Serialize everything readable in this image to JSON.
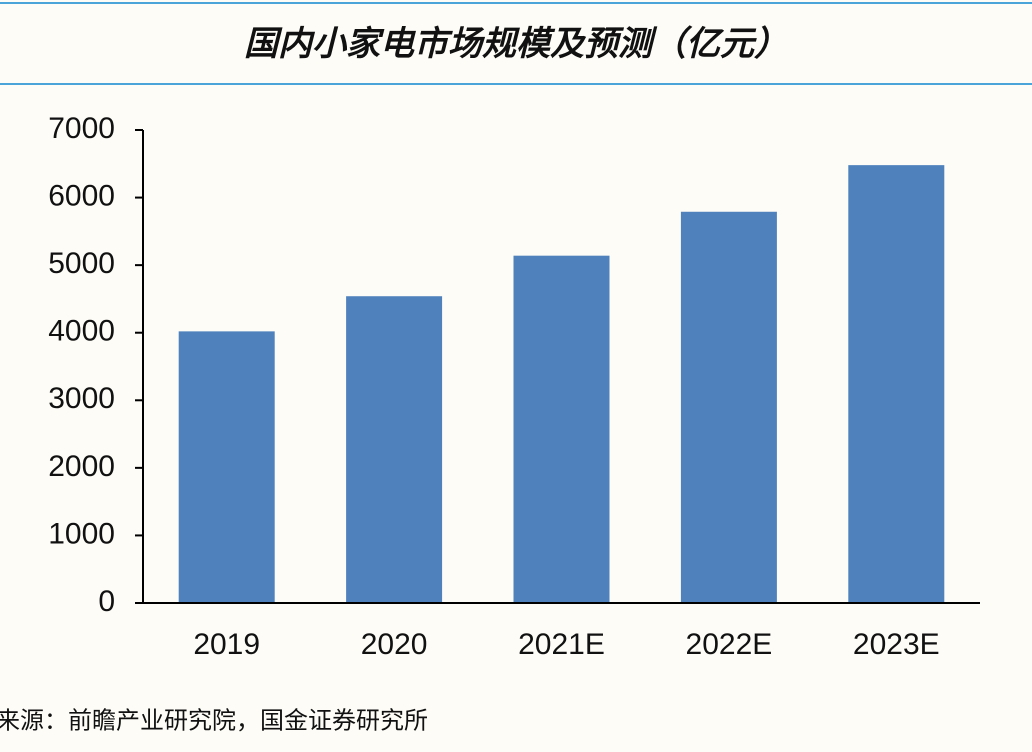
{
  "chart_data": {
    "type": "bar",
    "title": "国内小家电市场规模及预测（亿元）",
    "categories": [
      "2019",
      "2020",
      "2021E",
      "2022E",
      "2023E"
    ],
    "values": [
      4020,
      4540,
      5140,
      5790,
      6480
    ],
    "color": "#4f81bd",
    "ylim": [
      0,
      7000
    ],
    "yticks": [
      0,
      1000,
      2000,
      3000,
      4000,
      5000,
      6000,
      7000
    ],
    "source": "来源：前瞻产业研究院，国金证券研究所"
  }
}
